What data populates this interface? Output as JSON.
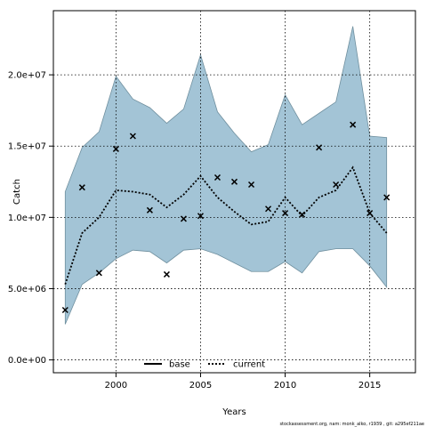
{
  "chart_data": {
    "type": "line",
    "xlabel": "Years",
    "ylabel": "Catch",
    "xlim": [
      1996.3,
      2017.7
    ],
    "ylim": [
      -900000,
      24500000
    ],
    "x_ticks": [
      2000,
      2005,
      2010,
      2015
    ],
    "y_ticks": [
      0,
      5000000,
      10000000,
      15000000,
      20000000
    ],
    "y_tick_labels": [
      "0.0e+00",
      "5.0e+06",
      "1.0e+07",
      "1.5e+07",
      "2.0e+07"
    ],
    "grid": true,
    "legend_position": "bottom-center",
    "credit": "stockassessment.org, nam: monk_alko, r1939 , git: a295ef211ae",
    "years": [
      1997,
      1998,
      1999,
      2000,
      2001,
      2002,
      2003,
      2004,
      2005,
      2006,
      2007,
      2008,
      2009,
      2010,
      2011,
      2012,
      2013,
      2014,
      2015,
      2016
    ],
    "series": [
      {
        "name": "base",
        "style": "solid",
        "color": "#000000",
        "values": []
      },
      {
        "name": "current",
        "style": "dotted",
        "color": "#000000",
        "values": [
          5300000,
          8900000,
          10000000,
          11900000,
          11800000,
          11600000,
          10700000,
          11600000,
          12900000,
          11400000,
          10400000,
          9500000,
          9700000,
          11400000,
          10100000,
          11400000,
          11900000,
          13500000,
          10300000,
          8900000
        ],
        "ci_lower": [
          2500000,
          5300000,
          6100000,
          7100000,
          7700000,
          7600000,
          6800000,
          7700000,
          7800000,
          7400000,
          6800000,
          6200000,
          6200000,
          6900000,
          6100000,
          7600000,
          7800000,
          7800000,
          6600000,
          5100000
        ],
        "ci_upper": [
          11800000,
          14900000,
          16000000,
          19900000,
          18300000,
          17700000,
          16600000,
          17600000,
          21400000,
          17400000,
          15900000,
          14600000,
          15100000,
          18600000,
          16500000,
          17300000,
          18100000,
          23400000,
          15700000,
          15600000
        ],
        "band_color": "#a3c4d6"
      }
    ],
    "observed": {
      "marker": "x",
      "values": [
        3500000,
        12100000,
        6100000,
        14800000,
        15700000,
        10500000,
        6000000,
        9900000,
        10100000,
        12800000,
        12500000,
        12300000,
        10600000,
        10300000,
        10200000,
        14900000,
        12300000,
        16500000,
        10300000,
        11400000
      ]
    }
  }
}
